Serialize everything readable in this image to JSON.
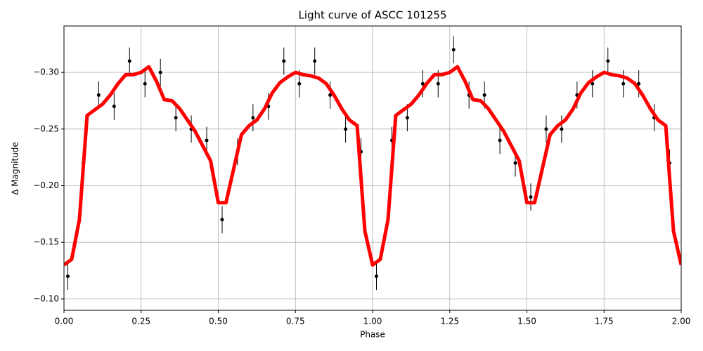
{
  "chart_data": {
    "type": "scatter",
    "title": "Light curve of ASCC 101255",
    "xlabel": "Phase",
    "ylabel": "Δ Magnitude",
    "xlim": [
      0,
      2
    ],
    "ylim": [
      -0.09,
      -0.341
    ],
    "grid": true,
    "xticks": [
      {
        "value": 0,
        "label": "0.00"
      },
      {
        "value": 0.25,
        "label": "0.25"
      },
      {
        "value": 0.5,
        "label": "0.50"
      },
      {
        "value": 0.75,
        "label": "0.75"
      },
      {
        "value": 1,
        "label": "1.00"
      },
      {
        "value": 1.25,
        "label": "1.25"
      },
      {
        "value": 1.5,
        "label": "1.50"
      },
      {
        "value": 1.75,
        "label": "1.75"
      },
      {
        "value": 2,
        "label": "2.00"
      }
    ],
    "yticks": [
      {
        "value": -0.3,
        "label": "−0.30"
      },
      {
        "value": -0.25,
        "label": "−0.25"
      },
      {
        "value": -0.2,
        "label": "−0.20"
      },
      {
        "value": -0.15,
        "label": "−0.15"
      },
      {
        "value": -0.1,
        "label": "−0.10"
      }
    ],
    "series": [
      {
        "type": "errorbar",
        "color": "#000000",
        "x": [
          0.0125,
          0.0625,
          0.1125,
          0.1625,
          0.2125,
          0.2625,
          0.3125,
          0.3625,
          0.4125,
          0.4625,
          0.5125,
          0.5625,
          0.6125,
          0.6625,
          0.7125,
          0.7625,
          0.8125,
          0.8625,
          0.9125,
          0.9625,
          1.0125,
          1.0625,
          1.1125,
          1.1625,
          1.2125,
          1.2625,
          1.3125,
          1.3625,
          1.4125,
          1.4625,
          1.5125,
          1.5625,
          1.6125,
          1.6625,
          1.7125,
          1.7625,
          1.8125,
          1.8625,
          1.9125,
          1.9625
        ],
        "values": [
          -0.12,
          -0.22,
          -0.28,
          -0.27,
          -0.31,
          -0.29,
          -0.3,
          -0.26,
          -0.25,
          -0.24,
          -0.17,
          -0.23,
          -0.26,
          -0.27,
          -0.31,
          -0.29,
          -0.31,
          -0.28,
          -0.25,
          -0.23,
          -0.12,
          -0.24,
          -0.26,
          -0.29,
          -0.29,
          -0.32,
          -0.28,
          -0.28,
          -0.24,
          -0.22,
          -0.19,
          -0.25,
          -0.25,
          -0.28,
          -0.29,
          -0.31,
          -0.29,
          -0.29,
          -0.26,
          -0.22
        ],
        "errors": [
          0.012,
          0.012,
          0.012,
          0.012,
          0.012,
          0.012,
          0.012,
          0.012,
          0.012,
          0.012,
          0.012,
          0.012,
          0.012,
          0.012,
          0.012,
          0.012,
          0.012,
          0.012,
          0.012,
          0.012,
          0.012,
          0.012,
          0.012,
          0.012,
          0.012,
          0.012,
          0.012,
          0.012,
          0.012,
          0.012,
          0.012,
          0.012,
          0.012,
          0.012,
          0.012,
          0.012,
          0.012,
          0.012,
          0.012,
          0.012
        ]
      },
      {
        "type": "line",
        "color": "#ff0000",
        "x": [
          0,
          0.025,
          0.05,
          0.075,
          0.1,
          0.125,
          0.15,
          0.175,
          0.2,
          0.225,
          0.25,
          0.275,
          0.3,
          0.325,
          0.35,
          0.375,
          0.4,
          0.425,
          0.45,
          0.475,
          0.5,
          0.525,
          0.55,
          0.575,
          0.6,
          0.625,
          0.65,
          0.675,
          0.7,
          0.725,
          0.75,
          0.775,
          0.8,
          0.825,
          0.85,
          0.875,
          0.9,
          0.925,
          0.95,
          0.975,
          1,
          1.025,
          1.05,
          1.075,
          1.1,
          1.125,
          1.15,
          1.175,
          1.2,
          1.225,
          1.25,
          1.275,
          1.3,
          1.325,
          1.35,
          1.375,
          1.4,
          1.425,
          1.45,
          1.475,
          1.5,
          1.525,
          1.55,
          1.575,
          1.6,
          1.625,
          1.65,
          1.675,
          1.7,
          1.725,
          1.75,
          1.775,
          1.8,
          1.825,
          1.85,
          1.875,
          1.9,
          1.925,
          1.95,
          1.975,
          2
        ],
        "values": [
          -0.13,
          -0.135,
          -0.17,
          -0.262,
          -0.267,
          -0.272,
          -0.28,
          -0.29,
          -0.298,
          -0.298,
          -0.3,
          -0.305,
          -0.292,
          -0.276,
          -0.275,
          -0.268,
          -0.258,
          -0.248,
          -0.235,
          -0.222,
          -0.185,
          -0.185,
          -0.215,
          -0.245,
          -0.253,
          -0.258,
          -0.268,
          -0.282,
          -0.291,
          -0.296,
          -0.3,
          -0.298,
          -0.297,
          -0.295,
          -0.29,
          -0.28,
          -0.268,
          -0.258,
          -0.253,
          -0.16,
          -0.13,
          -0.135,
          -0.17,
          -0.262,
          -0.267,
          -0.272,
          -0.28,
          -0.29,
          -0.298,
          -0.298,
          -0.3,
          -0.305,
          -0.292,
          -0.276,
          -0.275,
          -0.268,
          -0.258,
          -0.248,
          -0.235,
          -0.222,
          -0.185,
          -0.185,
          -0.215,
          -0.245,
          -0.253,
          -0.258,
          -0.268,
          -0.282,
          -0.291,
          -0.296,
          -0.3,
          -0.298,
          -0.297,
          -0.295,
          -0.29,
          -0.28,
          -0.268,
          -0.258,
          -0.253,
          -0.16,
          -0.13
        ]
      }
    ]
  }
}
